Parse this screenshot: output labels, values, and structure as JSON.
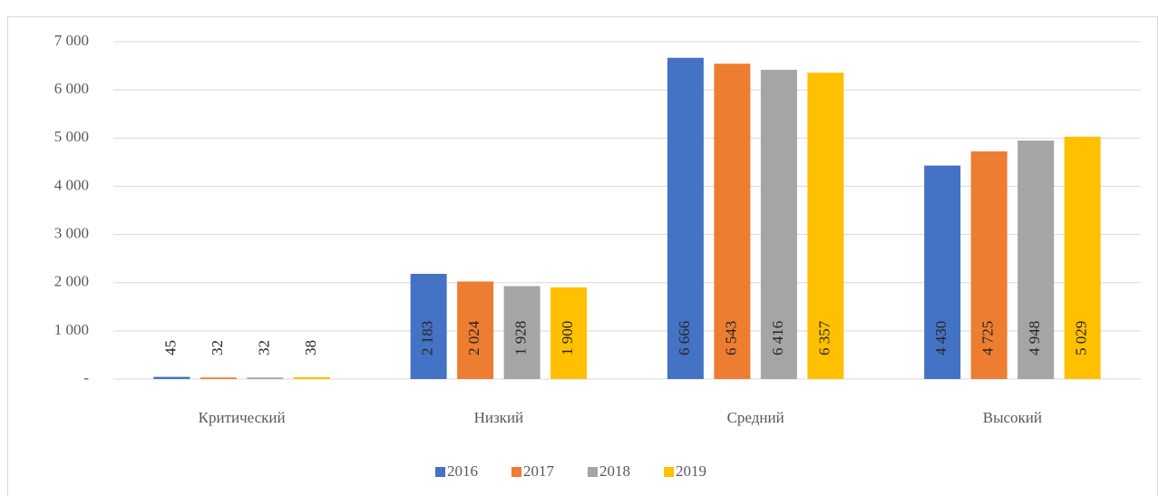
{
  "chart_data": {
    "type": "bar",
    "categories": [
      "Критический",
      "Низкий",
      "Средний",
      "Высокий"
    ],
    "series": [
      {
        "name": "2016",
        "color": "#4472c4",
        "values": [
          45,
          2183,
          6666,
          4430
        ],
        "value_labels": [
          "45",
          "2 183",
          "6 666",
          "4 430"
        ]
      },
      {
        "name": "2017",
        "color": "#ed7d31",
        "values": [
          32,
          2024,
          6543,
          4725
        ],
        "value_labels": [
          "32",
          "2 024",
          "6 543",
          "4 725"
        ]
      },
      {
        "name": "2018",
        "color": "#a5a5a5",
        "values": [
          32,
          1928,
          6416,
          4948
        ],
        "value_labels": [
          "32",
          "1 928",
          "6 416",
          "4 948"
        ]
      },
      {
        "name": "2019",
        "color": "#ffc000",
        "values": [
          38,
          1900,
          6357,
          5029
        ],
        "value_labels": [
          "38",
          "1 900",
          "6 357",
          "5 029"
        ]
      }
    ],
    "ylim": [
      0,
      7000
    ],
    "yticks": [
      {
        "value": 0,
        "label": "-"
      },
      {
        "value": 1000,
        "label": "1 000"
      },
      {
        "value": 2000,
        "label": "2 000"
      },
      {
        "value": 3000,
        "label": "3 000"
      },
      {
        "value": 4000,
        "label": "4 000"
      },
      {
        "value": 5000,
        "label": "5 000"
      },
      {
        "value": 6000,
        "label": "6 000"
      },
      {
        "value": 7000,
        "label": "7 000"
      }
    ],
    "grid": true,
    "legend": "bottom"
  }
}
